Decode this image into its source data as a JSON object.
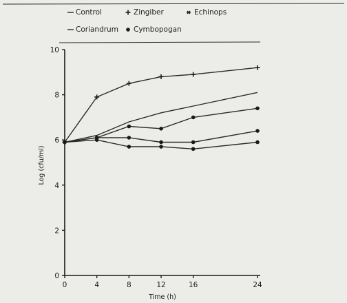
{
  "chart_data": {
    "type": "line",
    "xlabel": "Time (h)",
    "ylabel": "Log (cfu/ml)",
    "xlim": [
      0,
      24
    ],
    "ylim": [
      0,
      10
    ],
    "x_ticks": [
      0,
      4,
      8,
      12,
      16,
      24
    ],
    "y_ticks": [
      0,
      2,
      4,
      6,
      8,
      10
    ],
    "grid": false,
    "legend_position": "top",
    "legend": [
      {
        "label": "Control",
        "marker": "none"
      },
      {
        "label": "Zingiber",
        "marker": "plus"
      },
      {
        "label": "Echinops",
        "marker": "star"
      },
      {
        "label": "Coriandrum",
        "marker": "none"
      },
      {
        "label": "Cymbopogan",
        "marker": "dot"
      }
    ],
    "series": [
      {
        "name": "Control",
        "marker": "plus",
        "points": [
          [
            0,
            5.9
          ],
          [
            4,
            7.9
          ],
          [
            8,
            8.5
          ],
          [
            12,
            8.8
          ],
          [
            16,
            8.9
          ],
          [
            24,
            9.2
          ]
        ]
      },
      {
        "name": "Zingiber",
        "marker": "none",
        "points": [
          [
            0,
            5.9
          ],
          [
            4,
            6.2
          ],
          [
            8,
            6.8
          ],
          [
            12,
            7.2
          ],
          [
            16,
            7.5
          ],
          [
            24,
            8.1
          ]
        ]
      },
      {
        "name": "Echinops",
        "marker": "dot",
        "points": [
          [
            0,
            5.9
          ],
          [
            4,
            6.1
          ],
          [
            8,
            6.6
          ],
          [
            12,
            6.5
          ],
          [
            16,
            7.0
          ],
          [
            24,
            7.4
          ]
        ]
      },
      {
        "name": "Coriandrum",
        "marker": "dot",
        "points": [
          [
            0,
            5.9
          ],
          [
            4,
            6.1
          ],
          [
            8,
            6.1
          ],
          [
            12,
            5.9
          ],
          [
            16,
            5.9
          ],
          [
            24,
            6.4
          ]
        ]
      },
      {
        "name": "Cymbopogan",
        "marker": "dot",
        "points": [
          [
            0,
            5.9
          ],
          [
            4,
            6.0
          ],
          [
            8,
            5.7
          ],
          [
            12,
            5.7
          ],
          [
            16,
            5.6
          ],
          [
            24,
            5.9
          ]
        ]
      }
    ]
  }
}
